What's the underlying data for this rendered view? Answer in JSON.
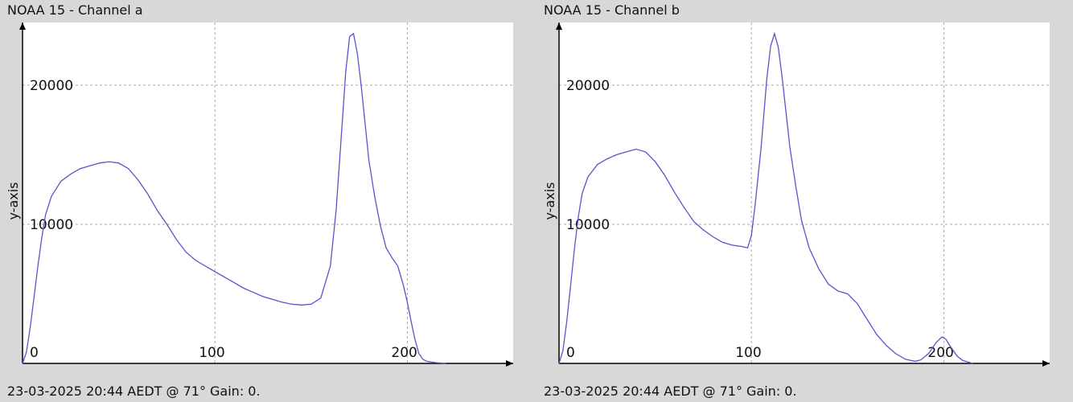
{
  "colors": {
    "background": "#d8d8d8",
    "plot_bg": "#ffffff",
    "line": "#5555cc",
    "grid": "#aaaaaa",
    "axis": "#000000"
  },
  "panels": [
    {
      "title": "NOAA 15 - Channel a",
      "footer": "23-03-2025 20:44 AEDT @ 71° Gain: 0.",
      "ylabel": "y-axis"
    },
    {
      "title": "NOAA 15 - Channel b",
      "footer": "23-03-2025 20:44 AEDT @ 71° Gain: 0.",
      "ylabel": "y-axis"
    }
  ],
  "chart_data": [
    {
      "type": "line",
      "title": "NOAA 15 - Channel a",
      "xlabel": "",
      "ylabel": "y-axis",
      "xlim": [
        0,
        255
      ],
      "ylim": [
        0,
        24500
      ],
      "xticks": [
        0,
        100,
        200
      ],
      "yticks": [
        10000,
        20000
      ],
      "grid": true,
      "x": [
        0,
        2,
        4,
        6,
        8,
        10,
        12,
        15,
        20,
        25,
        30,
        35,
        40,
        45,
        50,
        55,
        60,
        65,
        70,
        75,
        80,
        85,
        90,
        95,
        100,
        105,
        110,
        115,
        120,
        125,
        130,
        135,
        140,
        145,
        150,
        155,
        160,
        163,
        166,
        168,
        170,
        172,
        174,
        176,
        178,
        180,
        183,
        186,
        189,
        192,
        195,
        198,
        200,
        202,
        204,
        206,
        208,
        210,
        215,
        220
      ],
      "y": [
        0,
        800,
        2600,
        4800,
        7000,
        9000,
        10700,
        12000,
        13100,
        13600,
        14000,
        14200,
        14400,
        14500,
        14400,
        14000,
        13200,
        12200,
        11000,
        10000,
        8900,
        8000,
        7400,
        7000,
        6600,
        6200,
        5800,
        5400,
        5100,
        4800,
        4600,
        4400,
        4250,
        4200,
        4250,
        4700,
        7000,
        11000,
        17000,
        21000,
        23500,
        23700,
        22300,
        20000,
        17300,
        14600,
        12000,
        9900,
        8300,
        7600,
        7000,
        5600,
        4400,
        3000,
        1700,
        700,
        300,
        150,
        50,
        0
      ]
    },
    {
      "type": "line",
      "title": "NOAA 15 - Channel b",
      "xlabel": "",
      "ylabel": "y-axis",
      "xlim": [
        0,
        255
      ],
      "ylim": [
        0,
        24500
      ],
      "xticks": [
        0,
        100,
        200
      ],
      "yticks": [
        10000,
        20000
      ],
      "grid": true,
      "x": [
        0,
        2,
        4,
        6,
        8,
        10,
        12,
        15,
        20,
        25,
        30,
        35,
        40,
        45,
        50,
        55,
        60,
        65,
        70,
        75,
        80,
        85,
        90,
        95,
        98,
        100,
        102,
        105,
        108,
        110,
        112,
        114,
        116,
        118,
        120,
        123,
        126,
        130,
        135,
        140,
        145,
        150,
        155,
        160,
        165,
        170,
        175,
        180,
        185,
        188,
        192,
        196,
        199,
        201,
        203,
        205,
        207,
        210,
        215
      ],
      "y": [
        0,
        900,
        3000,
        5600,
        8200,
        10500,
        12200,
        13400,
        14300,
        14700,
        15000,
        15200,
        15400,
        15200,
        14500,
        13500,
        12300,
        11200,
        10200,
        9600,
        9100,
        8700,
        8500,
        8400,
        8300,
        9200,
        11500,
        15500,
        20500,
        22800,
        23700,
        22700,
        20500,
        18000,
        15500,
        12800,
        10300,
        8300,
        6800,
        5700,
        5200,
        5000,
        4300,
        3200,
        2100,
        1300,
        700,
        300,
        150,
        250,
        700,
        1500,
        1900,
        1750,
        1300,
        900,
        500,
        200,
        0
      ]
    }
  ]
}
